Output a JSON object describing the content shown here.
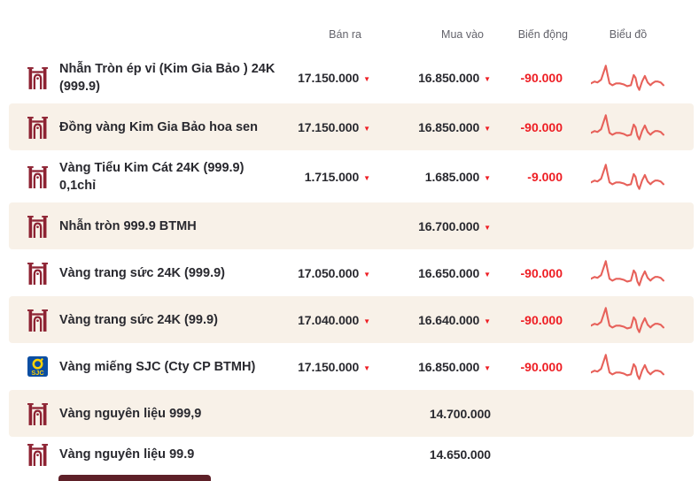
{
  "header": {
    "columns": [
      "Bán ra",
      "Mua vào",
      "Biến động",
      "Biểu đồ"
    ]
  },
  "colors": {
    "accent_red": "#ee1d23",
    "maroon": "#8d2232",
    "maroon_dark": "#5e2028",
    "beige": "#f8f1e8",
    "text_dark": "#29292f",
    "header_gray": "#63636b",
    "spark_red": "#e7615a",
    "sjc_blue": "#0b4ea2",
    "sjc_yellow": "#ffd200"
  },
  "rows": [
    {
      "icon": "btmh",
      "name_lines": [
        "Nhẫn Tròn ép vỉ (Kim Gia Bảo ) 24K",
        "(999.9)"
      ],
      "sell": "17.150.000",
      "sell_down": true,
      "buy": "16.850.000",
      "buy_down": true,
      "change": "-90.000",
      "chart": true,
      "shaded": false
    },
    {
      "icon": "btmh",
      "name_lines": [
        "Đồng vàng Kim Gia Bảo hoa sen"
      ],
      "sell": "17.150.000",
      "sell_down": true,
      "buy": "16.850.000",
      "buy_down": true,
      "change": "-90.000",
      "chart": true,
      "shaded": true
    },
    {
      "icon": "btmh",
      "name_lines": [
        "Vàng Tiểu Kim Cát 24K (999.9)",
        "0,1chỉ"
      ],
      "sell": "1.715.000",
      "sell_down": true,
      "buy": "1.685.000",
      "buy_down": true,
      "change": "-9.000",
      "chart": true,
      "shaded": false
    },
    {
      "icon": "btmh",
      "name_lines": [
        "Nhẫn tròn 999.9 BTMH"
      ],
      "sell": "",
      "sell_down": false,
      "buy": "16.700.000",
      "buy_down": true,
      "change": "",
      "chart": false,
      "shaded": true
    },
    {
      "icon": "btmh",
      "name_lines": [
        "Vàng trang sức 24K (999.9)"
      ],
      "sell": "17.050.000",
      "sell_down": true,
      "buy": "16.650.000",
      "buy_down": true,
      "change": "-90.000",
      "chart": true,
      "shaded": false
    },
    {
      "icon": "btmh",
      "name_lines": [
        "Vàng trang sức 24K (99.9)"
      ],
      "sell": "17.040.000",
      "sell_down": true,
      "buy": "16.640.000",
      "buy_down": true,
      "change": "-90.000",
      "chart": true,
      "shaded": true
    },
    {
      "icon": "sjc",
      "name_lines": [
        "Vàng miếng SJC (Cty CP BTMH)"
      ],
      "sell": "17.150.000",
      "sell_down": true,
      "buy": "16.850.000",
      "buy_down": true,
      "change": "-90.000",
      "chart": true,
      "shaded": false
    },
    {
      "icon": "btmh",
      "name_lines": [
        "Vàng nguyên liệu 999,9"
      ],
      "sell": "",
      "sell_down": false,
      "buy": "14.700.000",
      "buy_down": false,
      "change": "",
      "chart": false,
      "shaded": true
    },
    {
      "icon": "btmh",
      "name_lines": [
        "Vàng nguyên liệu 99.9"
      ],
      "sell": "",
      "sell_down": false,
      "buy": "14.650.000",
      "buy_down": false,
      "change": "",
      "chart": false,
      "shaded": false
    }
  ],
  "sparkline": {
    "type": "line",
    "points": [
      [
        0,
        21
      ],
      [
        4,
        19
      ],
      [
        7,
        20
      ],
      [
        11,
        17
      ],
      [
        14,
        8
      ],
      [
        16,
        2
      ],
      [
        18,
        12
      ],
      [
        20,
        21
      ],
      [
        23,
        23
      ],
      [
        27,
        21
      ],
      [
        31,
        21
      ],
      [
        35,
        22
      ],
      [
        39,
        24
      ],
      [
        43,
        23
      ],
      [
        46,
        12
      ],
      [
        48,
        15
      ],
      [
        50,
        24
      ],
      [
        52,
        28
      ],
      [
        55,
        19
      ],
      [
        58,
        13
      ],
      [
        61,
        20
      ],
      [
        64,
        23
      ],
      [
        66,
        21
      ],
      [
        69,
        19
      ],
      [
        72,
        19
      ],
      [
        75,
        20
      ],
      [
        78,
        23
      ]
    ]
  },
  "glyphs": {
    "down_triangle": "▼"
  }
}
